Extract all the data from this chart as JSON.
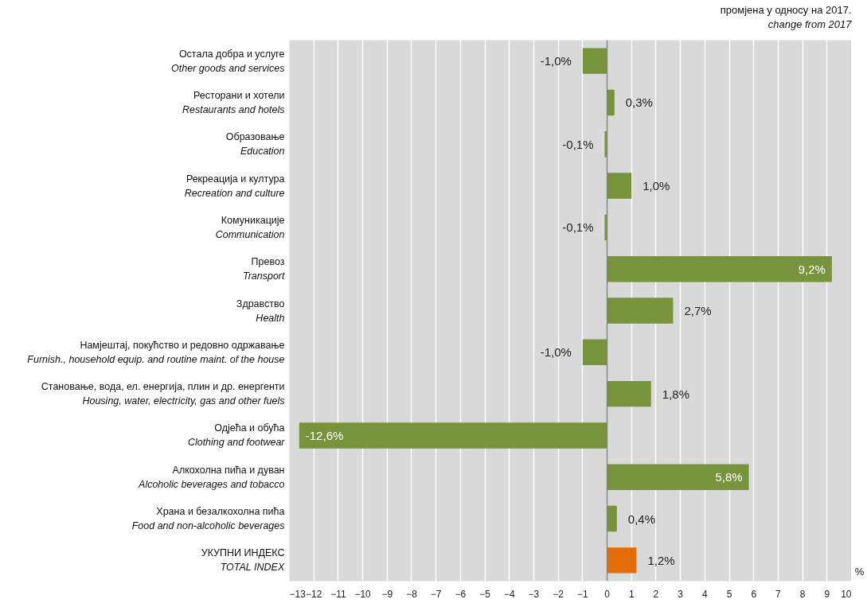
{
  "chart_data": {
    "type": "bar",
    "orientation": "horizontal",
    "title": "промјена у односу на 2017.",
    "subtitle": "change from 2017",
    "xlabel": "%",
    "categories": [
      "Остала добра и услуге\nOther goods and services",
      "Ресторани и хотели\nRestaurants and hotels",
      "Образовање\nEducation",
      "Рекреација и култура\nRecreation and culture",
      "Комуникације\nCommunication",
      "Превоз\nTransport",
      "Здравство\nHealth",
      "Намјештај, покућство и редовно одржавање\nFurnish., household equip. and routine maint. of the house",
      "Становање, вода, ел. енергија, плин и др. енергенти\nHousing, water, electricity, gas and other fuels",
      "Одјећа и обућа\nClothing and footwear",
      "Алкохолна пића и дуван\nAlcoholic beverages and tobacco",
      "Храна и безалкохолна пића\nFood and non-alcoholic beverages",
      "УКУПНИ ИНДЕКС\nTOTAL INDEX"
    ],
    "values": [
      -1.0,
      0.3,
      -0.1,
      1.0,
      -0.1,
      9.2,
      2.7,
      -1.0,
      1.8,
      -12.6,
      5.8,
      0.4,
      1.2
    ],
    "value_labels": [
      "-1,0%",
      "0,3%",
      "-0,1%",
      "1,0%",
      "-0,1%",
      "9,2%",
      "2,7%",
      "-1,0%",
      "1,8%",
      "-12,6%",
      "5,8%",
      "0,4%",
      "1,2%"
    ],
    "colors": [
      "#77933c",
      "#77933c",
      "#77933c",
      "#77933c",
      "#77933c",
      "#77933c",
      "#77933c",
      "#77933c",
      "#77933c",
      "#77933c",
      "#77933c",
      "#77933c",
      "#e46c0a"
    ],
    "xlim": [
      -13,
      10
    ],
    "xticks": [
      -13,
      -12,
      -11,
      -10,
      -9,
      -8,
      -7,
      -6,
      -5,
      -4,
      -3,
      -2,
      -1,
      0,
      1,
      2,
      3,
      4,
      5,
      6,
      7,
      8,
      9,
      10
    ],
    "grid": "x",
    "legend": false
  }
}
